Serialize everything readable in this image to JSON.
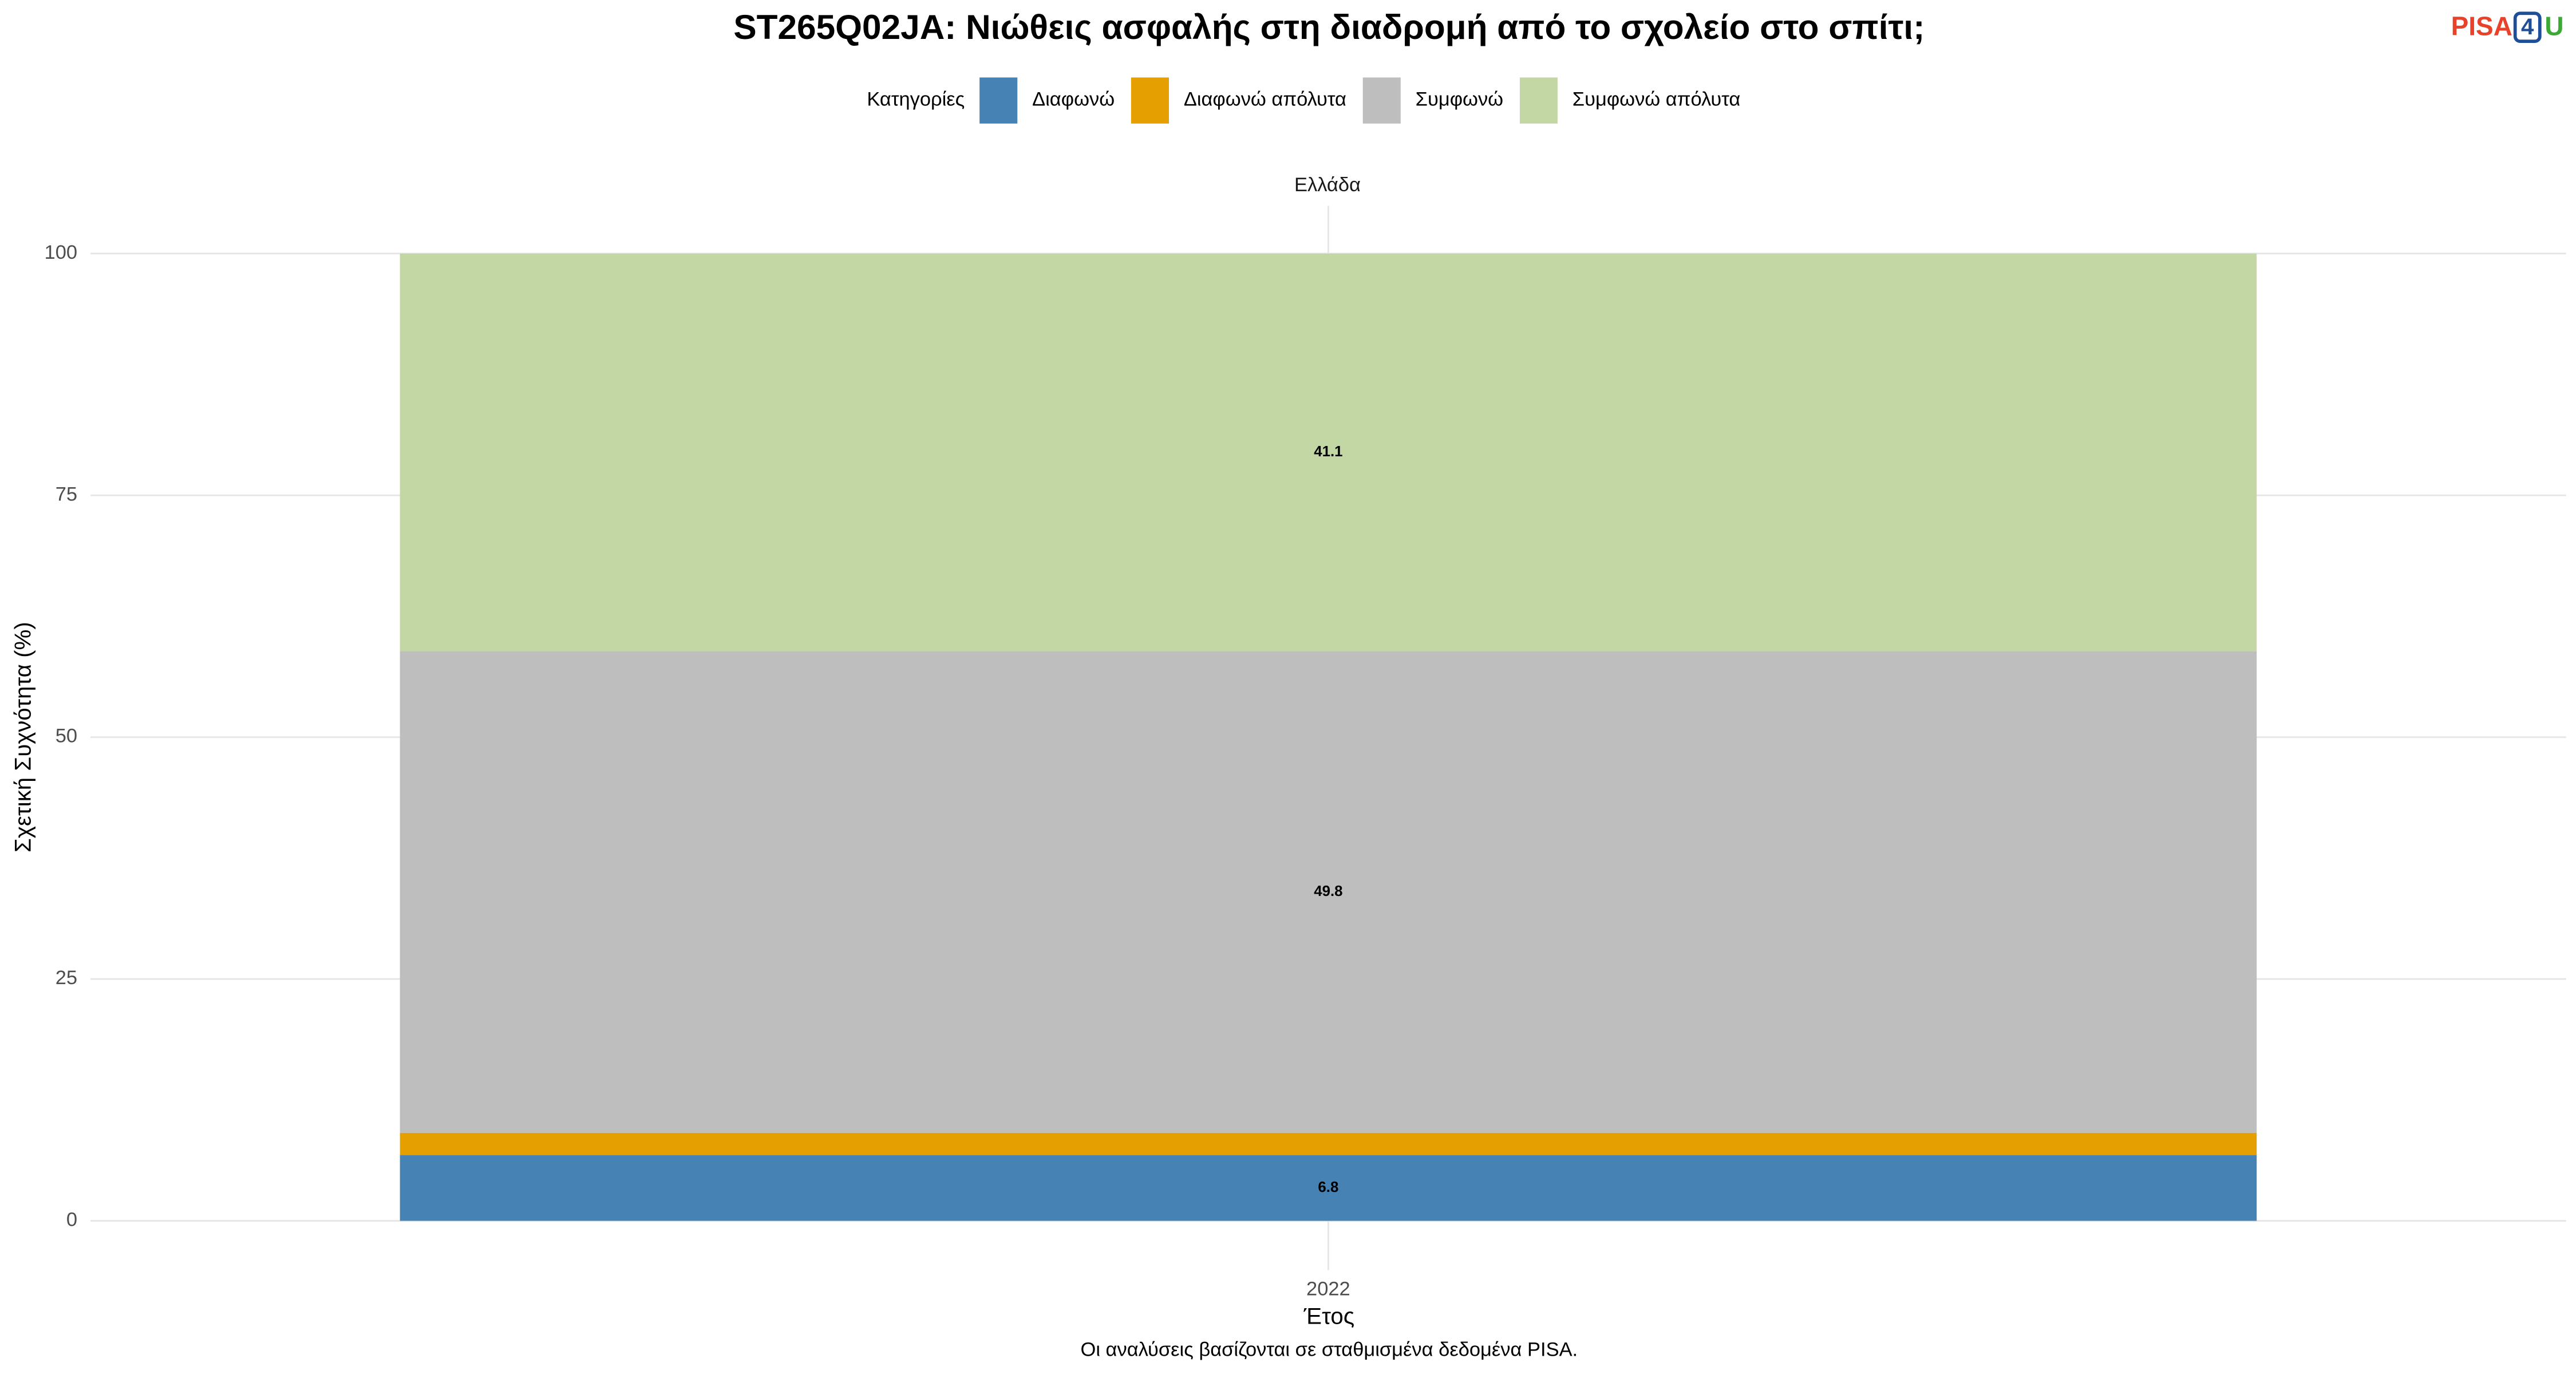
{
  "chart_data": {
    "type": "stacked_bar",
    "title": "ST265Q02JA: Νιώθεις ασφαλής στη διαδρομή από το σχολείο στο σπίτι;",
    "legend_title": "Κατηγορίες",
    "facet": "Ελλάδα",
    "categories": [
      "2022"
    ],
    "series": [
      {
        "name": "Διαφωνώ",
        "color": "#4682b4",
        "values": [
          6.8
        ],
        "show_labels": true
      },
      {
        "name": "Διαφωνώ απόλυτα",
        "color": "#e69f00",
        "values": [
          2.3
        ],
        "show_labels": false
      },
      {
        "name": "Συμφωνώ",
        "color": "#bebebe",
        "values": [
          49.8
        ],
        "show_labels": true
      },
      {
        "name": "Συμφωνώ απόλυτα",
        "color": "#c3d7a4",
        "values": [
          41.1
        ],
        "show_labels": true
      }
    ],
    "ylim": [
      0,
      100
    ],
    "yticks": [
      0,
      25,
      50,
      75,
      100
    ],
    "grid": true,
    "xlabel": "Έτος",
    "ylabel": "Σχετική Συχνότητα (%)",
    "caption": "Οι αναλύσεις βασίζονται σε σταθμισμένα δεδομένα PISA.",
    "logo": [
      "PISA",
      "4",
      "U"
    ]
  }
}
